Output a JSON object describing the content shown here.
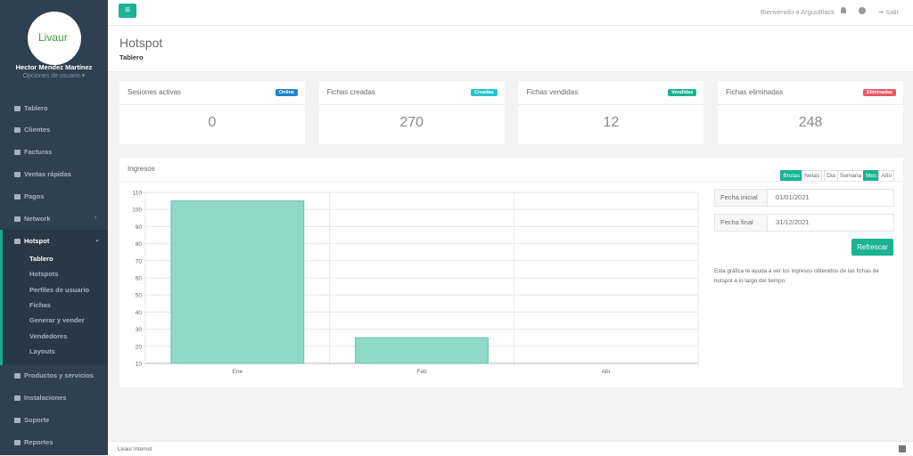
{
  "sidebar": {
    "logo": "Livaur",
    "user_name": "Hector Mendez Martínez",
    "user_options": "Opciones de usuario",
    "menu_top": [
      "Tablero",
      "Clientes",
      "Facturas",
      "Ventas rápidas",
      "Pagos",
      "Network"
    ],
    "hotspot": {
      "label": "Hotspot",
      "items": [
        "Tablero",
        "Hotspots",
        "Perfiles de usuario",
        "Fichas",
        "Generar y vender",
        "Vendedores",
        "Layouts"
      ]
    },
    "menu_bottom": [
      "Productos y servicios",
      "Instalaciones",
      "Soporte",
      "Reportes"
    ]
  },
  "topbar": {
    "welcome": "Bienvenido a ArgusBlack",
    "logout": "Salir"
  },
  "header": {
    "title": "Hotspot",
    "breadcrumb": "Tablero"
  },
  "cards": [
    {
      "title": "Sesiones activas",
      "badge": "Online",
      "value": "0"
    },
    {
      "title": "Fichas creadas",
      "badge": "Creadas",
      "value": "270"
    },
    {
      "title": "Fichas vendidas",
      "badge": "Vendidas",
      "value": "12"
    },
    {
      "title": "Fichas eliminadas",
      "badge": "Eliminadas",
      "value": "248"
    }
  ],
  "panel": {
    "title": "Ingresos",
    "modes": [
      "Brutas",
      "Netas"
    ],
    "periods": [
      "Dia",
      "Semana",
      "Mes",
      "Año"
    ],
    "filters": [
      {
        "label": "Fecha inicial",
        "value": "01/01/2021"
      },
      {
        "label": "Fecha final",
        "value": "31/12/2021"
      }
    ],
    "button": "Refrescar",
    "help": "Esta gráfica te ayuda a ver los ingresos obtenidos de las fichas de hotspot a lo largo del tiempo."
  },
  "chart_data": {
    "type": "bar",
    "categories": [
      "Ene",
      "Feb",
      "Abr"
    ],
    "values": [
      105,
      25,
      null
    ],
    "color": "#8fd9c7",
    "border_color": "#5cc4a9",
    "ylim": [
      10,
      110
    ],
    "yticks": [
      10,
      20,
      30,
      40,
      50,
      60,
      70,
      80,
      90,
      100,
      110
    ],
    "grid": true
  },
  "footer": {
    "text": "Livaur Internet"
  }
}
